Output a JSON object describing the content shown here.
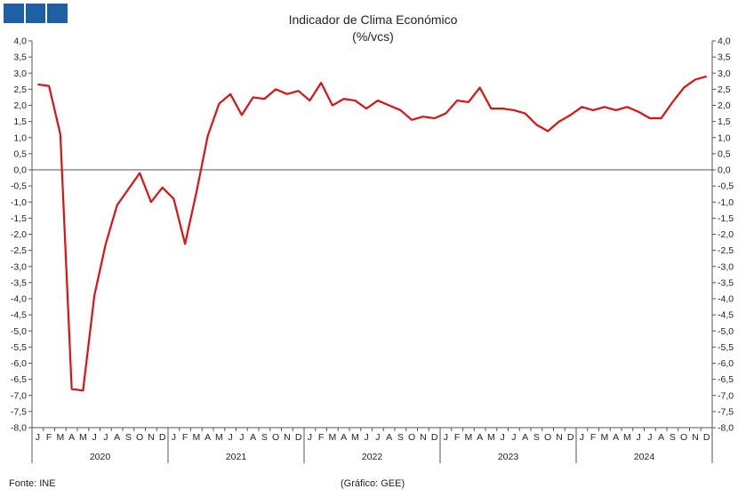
{
  "header": {
    "logo_name": "gee-logo"
  },
  "chart_data": {
    "type": "line",
    "title": "Indicador de Clima Económico",
    "subtitle": "(%/vcs)",
    "ylim": [
      -8.0,
      4.0
    ],
    "y_ticks": [
      "4,0",
      "3,5",
      "3,0",
      "2,5",
      "2,0",
      "1,5",
      "1,0",
      "0,5",
      "0,0",
      "-0,5",
      "-1,0",
      "-1,5",
      "-2,0",
      "-2,5",
      "-3,0",
      "-3,5",
      "-4,0",
      "-4,5",
      "-5,0",
      "-5,5",
      "-6,0",
      "-6,5",
      "-7,0",
      "-7,5",
      "-8,0"
    ],
    "month_labels": [
      "J",
      "F",
      "M",
      "A",
      "M",
      "J",
      "J",
      "A",
      "S",
      "O",
      "N",
      "D"
    ],
    "years": [
      "2020",
      "2021",
      "2022",
      "2023",
      "2024"
    ],
    "grid": false,
    "series_color": "#e01010",
    "values": [
      2.65,
      2.6,
      1.1,
      -6.8,
      -6.85,
      -3.9,
      -2.3,
      -1.1,
      -0.6,
      -0.1,
      -1.0,
      -0.55,
      -0.9,
      -2.3,
      -0.7,
      1.05,
      2.05,
      2.35,
      1.7,
      2.25,
      2.2,
      2.5,
      2.35,
      2.45,
      2.15,
      2.7,
      2.0,
      2.2,
      2.15,
      1.9,
      2.15,
      2.0,
      1.85,
      1.55,
      1.65,
      1.6,
      1.75,
      2.15,
      2.1,
      2.55,
      1.9,
      1.9,
      1.85,
      1.75,
      1.4,
      1.2,
      1.5,
      1.7,
      1.95,
      1.85,
      1.95,
      1.85,
      1.95,
      1.8,
      1.6,
      1.6,
      2.1,
      2.55,
      2.8,
      2.9
    ]
  },
  "footer": {
    "source": "Fonte: INE",
    "credit": "(Gráfico: GEE)"
  }
}
